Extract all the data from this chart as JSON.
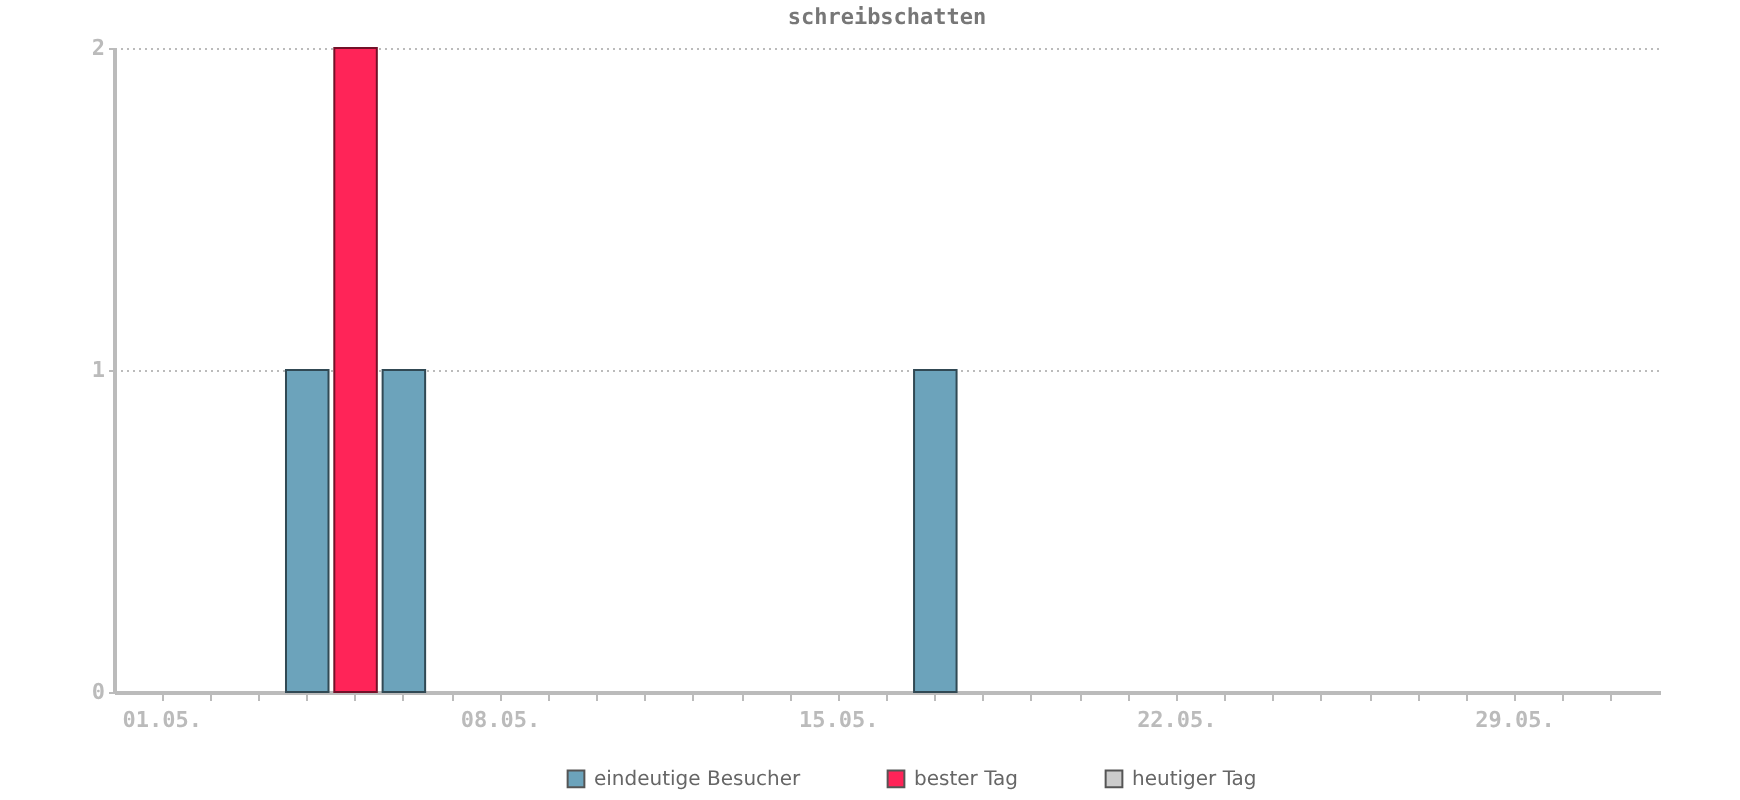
{
  "chart_data": {
    "type": "bar",
    "title": "schreibschatten",
    "categories": [
      "01.05.",
      null,
      null,
      null,
      null,
      null,
      null,
      "08.05.",
      null,
      null,
      null,
      null,
      null,
      null,
      "15.05.",
      null,
      null,
      null,
      null,
      null,
      null,
      "22.05.",
      null,
      null,
      null,
      null,
      null,
      null,
      "29.05.",
      null,
      null
    ],
    "series": [
      {
        "name": "eindeutige Besucher",
        "color": "#6ca3bb",
        "values": [
          null,
          null,
          null,
          1,
          null,
          1,
          null,
          null,
          null,
          null,
          null,
          null,
          null,
          null,
          null,
          null,
          1,
          null,
          null,
          null,
          null,
          null,
          null,
          null,
          null,
          null,
          null,
          null,
          null,
          null,
          null
        ]
      },
      {
        "name": "bester Tag",
        "color": "#ff2458",
        "values": [
          null,
          null,
          null,
          null,
          2,
          null,
          null,
          null,
          null,
          null,
          null,
          null,
          null,
          null,
          null,
          null,
          null,
          null,
          null,
          null,
          null,
          null,
          null,
          null,
          null,
          null,
          null,
          null,
          null,
          null,
          null
        ]
      },
      {
        "name": "heutiger Tag",
        "color": "#cccccc",
        "values": [
          null,
          null,
          null,
          null,
          null,
          null,
          null,
          null,
          null,
          null,
          null,
          null,
          null,
          null,
          null,
          null,
          null,
          null,
          null,
          null,
          null,
          null,
          null,
          null,
          null,
          null,
          null,
          null,
          null,
          null,
          null
        ]
      }
    ],
    "ylim": [
      0,
      2
    ],
    "yticks": [
      0,
      1,
      2
    ],
    "grid": "y",
    "legend": "bottom"
  }
}
